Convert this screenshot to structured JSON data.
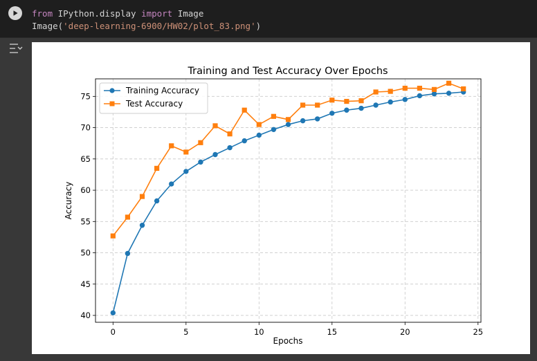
{
  "code": {
    "line1": {
      "kw1": "from",
      "mod": " IPython.display ",
      "kw2": "import",
      "name": " Image"
    },
    "line2": {
      "call": "Image(",
      "arg": "'deep-learning-6900/HW02/plot_83.png'",
      "close": ")"
    }
  },
  "icons": {
    "run": "play-icon",
    "output_toggle": "output-toggle-icon"
  },
  "chart_data": {
    "type": "line",
    "title": "Training and Test Accuracy Over Epochs",
    "xlabel": "Epochs",
    "ylabel": "Accuracy",
    "xlim": [
      -1.2,
      25.2
    ],
    "ylim": [
      38.9,
      77.8
    ],
    "xticks": [
      0,
      5,
      10,
      15,
      20,
      25
    ],
    "yticks": [
      40,
      45,
      50,
      55,
      60,
      65,
      70,
      75
    ],
    "grid": true,
    "legend_position": "upper-left",
    "x": [
      0,
      1,
      2,
      3,
      4,
      5,
      6,
      7,
      8,
      9,
      10,
      11,
      12,
      13,
      14,
      15,
      16,
      17,
      18,
      19,
      20,
      21,
      22,
      23,
      24
    ],
    "series": [
      {
        "name": "Training Accuracy",
        "color": "#1f77b4",
        "marker": "circle",
        "values": [
          40.4,
          49.9,
          54.4,
          58.3,
          61.0,
          63.0,
          64.5,
          65.7,
          66.8,
          67.9,
          68.8,
          69.7,
          70.5,
          71.1,
          71.4,
          72.3,
          72.8,
          73.1,
          73.6,
          74.1,
          74.5,
          75.1,
          75.4,
          75.5,
          75.7
        ]
      },
      {
        "name": "Test Accuracy",
        "color": "#ff7f0e",
        "marker": "square",
        "values": [
          52.7,
          55.7,
          59.0,
          63.5,
          67.1,
          66.1,
          67.6,
          70.3,
          69.0,
          72.8,
          70.5,
          71.8,
          71.3,
          73.6,
          73.6,
          74.4,
          74.2,
          74.3,
          75.7,
          75.8,
          76.3,
          76.3,
          76.1,
          77.1,
          76.2
        ]
      }
    ]
  }
}
